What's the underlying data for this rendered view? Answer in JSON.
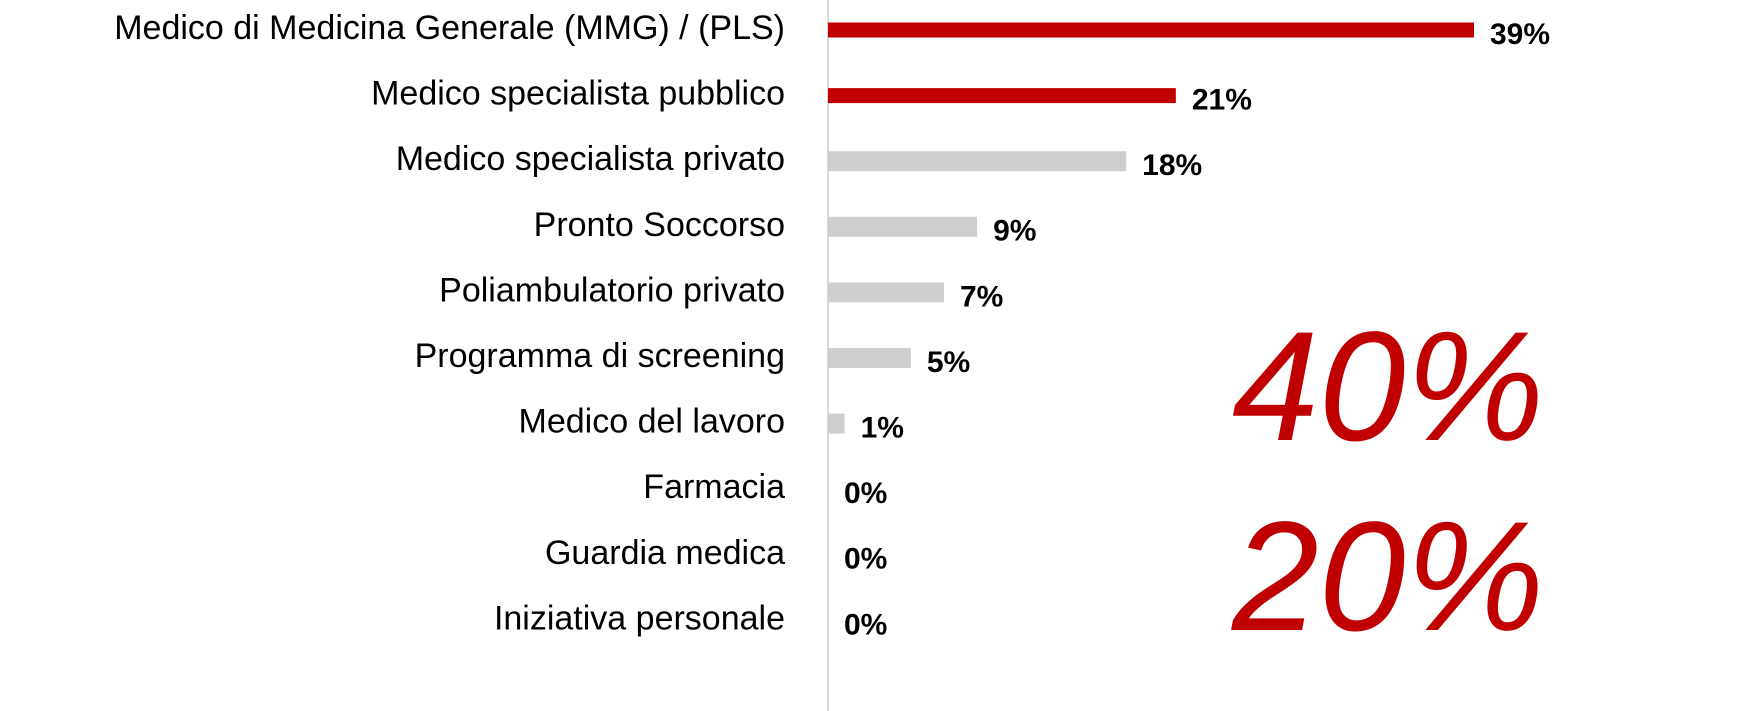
{
  "chart_data": {
    "type": "bar",
    "orientation": "horizontal",
    "categories": [
      "Medico di Medicina Generale (MMG) / (PLS)",
      "Medico specialista pubblico",
      "Medico specialista privato",
      "Pronto Soccorso",
      "Poliambulatorio privato",
      "Programma di screening",
      "Medico del lavoro",
      "Farmacia",
      "Guardia medica",
      "Iniziativa personale"
    ],
    "values": [
      39,
      21,
      18,
      9,
      7,
      5,
      1,
      0,
      0,
      0
    ],
    "value_labels": [
      "39%",
      "21%",
      "18%",
      "9%",
      "7%",
      "5%",
      "1%",
      "0%",
      "0%",
      "0%"
    ],
    "colors": [
      "#c00000",
      "#c00000",
      "#d0cece",
      "#d0cece",
      "#d0cece",
      "#d0cece",
      "#d0cece",
      "#d0cece",
      "#d0cece",
      "#d0cece"
    ],
    "annotations": [
      "40%",
      "20%"
    ]
  }
}
